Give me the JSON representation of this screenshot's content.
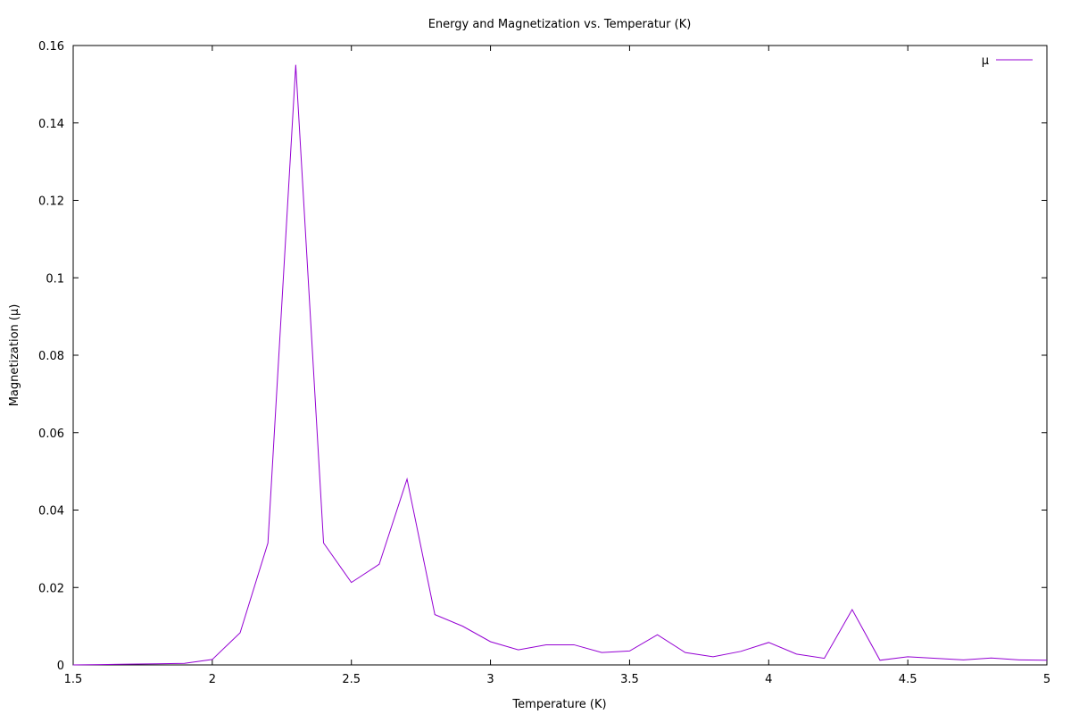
{
  "chart_data": {
    "type": "line",
    "title": "Energy and Magnetization vs. Temperatur (K)",
    "xlabel": "Temperature  (K)",
    "ylabel": "Magnetization (μ)",
    "xlim": [
      1.5,
      5
    ],
    "ylim": [
      0,
      0.16
    ],
    "xticks": [
      1.5,
      2,
      2.5,
      3,
      3.5,
      4,
      4.5,
      5
    ],
    "xtick_labels": [
      "1.5",
      "2",
      "2.5",
      "3",
      "3.5",
      "4",
      "4.5",
      "5"
    ],
    "yticks": [
      0,
      0.02,
      0.04,
      0.06,
      0.08,
      0.1,
      0.12,
      0.14,
      0.16
    ],
    "ytick_labels": [
      "0",
      "0.02",
      "0.04",
      "0.06",
      "0.08",
      "0.1",
      "0.12",
      "0.14",
      "0.16"
    ],
    "grid": false,
    "legend_position": "top-right",
    "series": [
      {
        "name": "μ",
        "color": "#9400d3",
        "x": [
          1.5,
          1.6,
          1.7,
          1.8,
          1.9,
          2.0,
          2.1,
          2.2,
          2.3,
          2.4,
          2.5,
          2.6,
          2.7,
          2.8,
          2.9,
          3.0,
          3.1,
          3.2,
          3.3,
          3.4,
          3.5,
          3.6,
          3.7,
          3.8,
          3.9,
          4.0,
          4.1,
          4.2,
          4.3,
          4.4,
          4.5,
          4.6,
          4.7,
          4.8,
          4.9,
          5.0
        ],
        "y": [
          0.0,
          0.0001,
          0.0002,
          0.0003,
          0.0004,
          0.0014,
          0.0083,
          0.0315,
          0.155,
          0.0315,
          0.0213,
          0.026,
          0.048,
          0.013,
          0.01,
          0.006,
          0.0039,
          0.0052,
          0.0052,
          0.0032,
          0.0036,
          0.0078,
          0.0032,
          0.0021,
          0.0035,
          0.0058,
          0.0028,
          0.0017,
          0.0143,
          0.0012,
          0.0021,
          0.0017,
          0.0013,
          0.0018,
          0.0013,
          0.0012
        ]
      }
    ]
  }
}
